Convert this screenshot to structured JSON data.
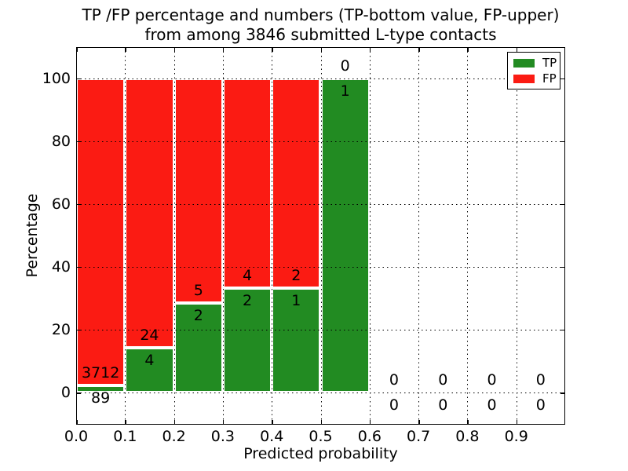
{
  "chart_data": {
    "type": "bar",
    "subtype": "stacked-percentage-histogram",
    "title": "TP /FP percentage and numbers (TP-bottom value, FP-upper)",
    "subtitle": "from among 3846 submitted L-type contacts",
    "xlabel": "Predicted probability",
    "ylabel": "Percentage",
    "xlim": [
      0.0,
      1.0
    ],
    "ylim": [
      -10.3,
      110.0
    ],
    "xtick_labels": [
      "0.0",
      "0.1",
      "0.2",
      "0.3",
      "0.4",
      "0.5",
      "0.6",
      "0.7",
      "0.8",
      "0.9"
    ],
    "xtick_values": [
      0.0,
      0.1,
      0.2,
      0.3,
      0.4,
      0.5,
      0.6,
      0.7,
      0.8,
      0.9
    ],
    "ytick_values": [
      0,
      20,
      40,
      60,
      80,
      100
    ],
    "grid": "dotted-black-major-both-axes",
    "bar_edge_color": "#ffffff",
    "colors": {
      "tp": "#228b22",
      "fp": "#fb1b13"
    },
    "legend": {
      "position": "upper-right",
      "entries": [
        {
          "label": "TP",
          "color": "#228b22"
        },
        {
          "label": "FP",
          "color": "#fb1b13"
        }
      ]
    },
    "bins": [
      {
        "range": [
          0.0,
          0.1
        ],
        "tp": 89,
        "fp": 3712,
        "tp_pct": 2.34,
        "fp_pct": 97.66
      },
      {
        "range": [
          0.1,
          0.2
        ],
        "tp": 4,
        "fp": 24,
        "tp_pct": 14.29,
        "fp_pct": 85.71
      },
      {
        "range": [
          0.2,
          0.3
        ],
        "tp": 2,
        "fp": 5,
        "tp_pct": 28.57,
        "fp_pct": 71.43
      },
      {
        "range": [
          0.3,
          0.4
        ],
        "tp": 2,
        "fp": 4,
        "tp_pct": 33.33,
        "fp_pct": 66.67
      },
      {
        "range": [
          0.4,
          0.5
        ],
        "tp": 1,
        "fp": 2,
        "tp_pct": 33.33,
        "fp_pct": 66.67
      },
      {
        "range": [
          0.5,
          0.6
        ],
        "tp": 1,
        "fp": 0,
        "tp_pct": 100.0,
        "fp_pct": 0.0
      },
      {
        "range": [
          0.6,
          0.7
        ],
        "tp": 0,
        "fp": 0,
        "tp_pct": null,
        "fp_pct": null
      },
      {
        "range": [
          0.7,
          0.8
        ],
        "tp": 0,
        "fp": 0,
        "tp_pct": null,
        "fp_pct": null
      },
      {
        "range": [
          0.8,
          0.9
        ],
        "tp": 0,
        "fp": 0,
        "tp_pct": null,
        "fp_pct": null
      },
      {
        "range": [
          0.9,
          1.0
        ],
        "tp": 0,
        "fp": 0,
        "tp_pct": null,
        "fp_pct": null
      }
    ]
  }
}
